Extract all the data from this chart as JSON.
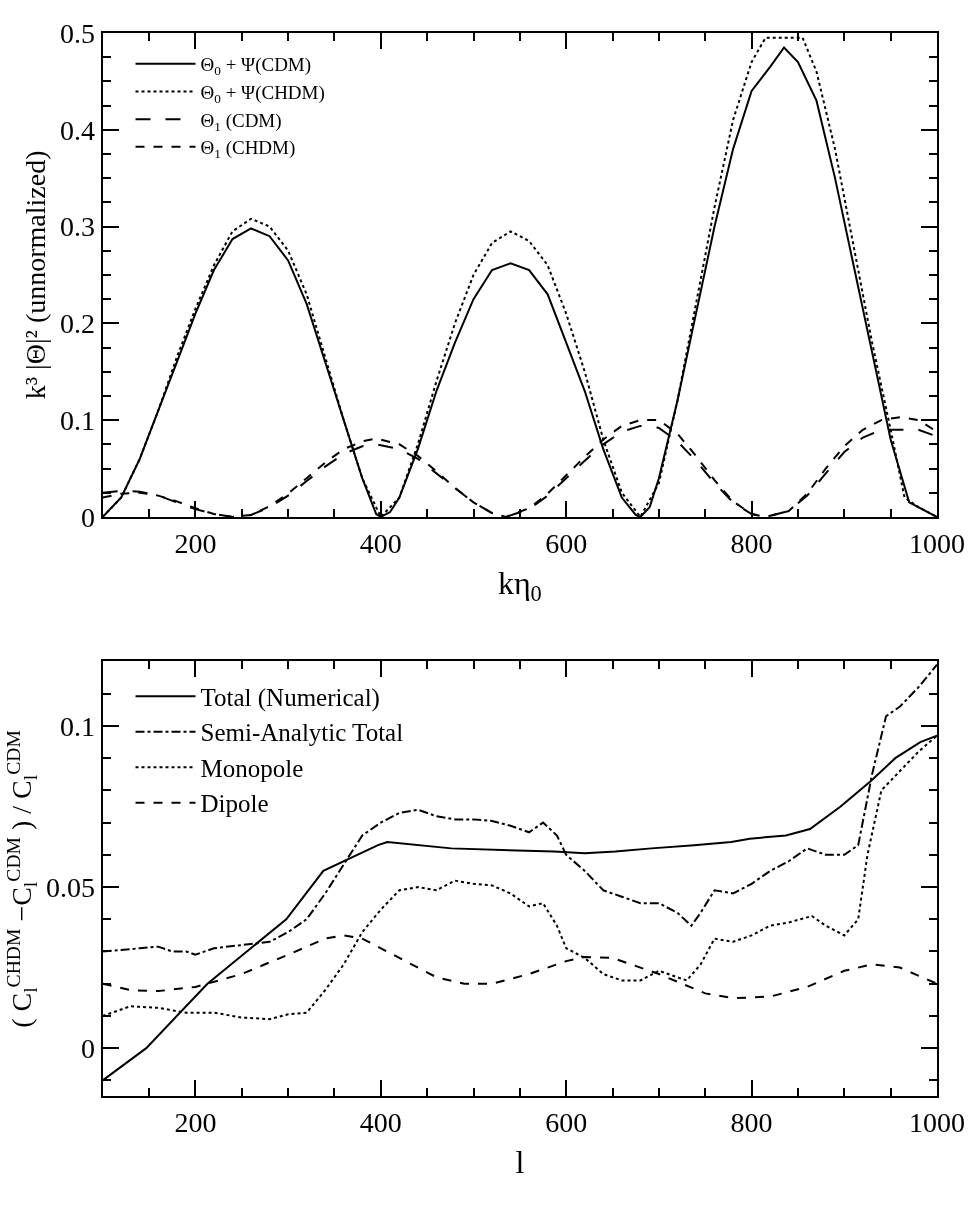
{
  "chart_data": [
    {
      "type": "line",
      "xlabel": "kη$_{0}$",
      "ylabel": "k³ |Θ|² (unnormalized)",
      "xlim": [
        100,
        1000
      ],
      "ylim": [
        0,
        0.5
      ],
      "xticks": [
        {
          "value": 150,
          "label": null
        },
        200,
        {
          "value": 250,
          "label": null
        },
        {
          "value": 300,
          "label": null
        },
        {
          "value": 350,
          "label": null
        },
        400,
        {
          "value": 450,
          "label": null
        },
        {
          "value": 500,
          "label": null
        },
        {
          "value": 550,
          "label": null
        },
        600,
        {
          "value": 650,
          "label": null
        },
        {
          "value": 700,
          "label": null
        },
        {
          "value": 750,
          "label": null
        },
        800,
        {
          "value": 850,
          "label": null
        },
        {
          "value": 900,
          "label": null
        },
        {
          "value": 950,
          "label": null
        },
        1000
      ],
      "yticks": [
        0,
        {
          "value": 0.025,
          "label": null
        },
        {
          "value": 0.05,
          "label": null
        },
        {
          "value": 0.075,
          "label": null
        },
        0.1,
        {
          "value": 0.125,
          "label": null
        },
        {
          "value": 0.15,
          "label": null
        },
        {
          "value": 0.175,
          "label": null
        },
        0.2,
        {
          "value": 0.225,
          "label": null
        },
        {
          "value": 0.25,
          "label": null
        },
        {
          "value": 0.275,
          "label": null
        },
        0.3,
        {
          "value": 0.325,
          "label": null
        },
        {
          "value": 0.35,
          "label": null
        },
        {
          "value": 0.375,
          "label": null
        },
        0.4,
        {
          "value": 0.425,
          "label": null
        },
        {
          "value": 0.45,
          "label": null
        },
        {
          "value": 0.475,
          "label": null
        },
        0.5
      ],
      "legend": "top left",
      "marker": "none",
      "series": [
        {
          "name": "Θ$_{0}$ + Ψ(CDM)",
          "color": "#000000",
          "line_style": "solid",
          "x": [
            100,
            120,
            140,
            160,
            180,
            200,
            220,
            240,
            260,
            280,
            300,
            320,
            340,
            360,
            380,
            395,
            400,
            410,
            420,
            440,
            460,
            480,
            500,
            520,
            540,
            560,
            580,
            600,
            620,
            640,
            660,
            675,
            680,
            690,
            700,
            720,
            740,
            760,
            780,
            800,
            820,
            835,
            850,
            870,
            890,
            910,
            930,
            950,
            970,
            990,
            1000
          ],
          "values": [
            0,
            0.02,
            0.06,
            0.11,
            0.16,
            0.21,
            0.255,
            0.287,
            0.298,
            0.29,
            0.265,
            0.22,
            0.16,
            0.1,
            0.04,
            0.003,
            0,
            0.005,
            0.02,
            0.07,
            0.13,
            0.18,
            0.225,
            0.255,
            0.262,
            0.255,
            0.23,
            0.18,
            0.13,
            0.07,
            0.02,
            0.002,
            0,
            0.01,
            0.04,
            0.12,
            0.21,
            0.3,
            0.38,
            0.44,
            0.465,
            0.485,
            0.47,
            0.43,
            0.35,
            0.26,
            0.17,
            0.08,
            0.015,
            0.005,
            0
          ]
        },
        {
          "name": "Θ$_{0}$ + Ψ(CHDM)",
          "color": "#000000",
          "line_style": "dotted",
          "x": [
            100,
            120,
            140,
            160,
            180,
            200,
            220,
            240,
            260,
            280,
            300,
            320,
            340,
            360,
            380,
            400,
            420,
            440,
            460,
            480,
            500,
            520,
            540,
            560,
            580,
            600,
            620,
            640,
            660,
            680,
            700,
            720,
            740,
            760,
            780,
            800,
            815,
            855,
            870,
            890,
            910,
            930,
            950,
            965,
            980,
            1000
          ],
          "values": [
            0,
            0.02,
            0.06,
            0.11,
            0.165,
            0.215,
            0.26,
            0.295,
            0.308,
            0.3,
            0.275,
            0.23,
            0.165,
            0.1,
            0.04,
            0,
            0.02,
            0.075,
            0.14,
            0.2,
            0.25,
            0.283,
            0.295,
            0.285,
            0.26,
            0.21,
            0.15,
            0.08,
            0.025,
            0,
            0.035,
            0.12,
            0.22,
            0.32,
            0.41,
            0.47,
            0.495,
            0.495,
            0.46,
            0.38,
            0.28,
            0.18,
            0.09,
            0.02,
            0.01,
            0
          ]
        },
        {
          "name": "Θ$_{1}$ (CDM)",
          "color": "#000000",
          "line_style": "longdash",
          "x": [
            100,
            120,
            140,
            160,
            180,
            200,
            220,
            240,
            260,
            280,
            300,
            320,
            340,
            360,
            380,
            395,
            420,
            440,
            460,
            480,
            500,
            520,
            535,
            560,
            580,
            600,
            620,
            640,
            660,
            680,
            700,
            720,
            740,
            760,
            780,
            800,
            815,
            840,
            860,
            880,
            900,
            920,
            940,
            960,
            980,
            1000
          ],
          "values": [
            0.025,
            0.027,
            0.026,
            0.022,
            0.015,
            0.008,
            0.003,
            0,
            0.002,
            0.01,
            0.022,
            0.037,
            0.052,
            0.065,
            0.073,
            0.075,
            0.07,
            0.06,
            0.045,
            0.03,
            0.015,
            0.004,
            0,
            0.008,
            0.022,
            0.04,
            0.058,
            0.075,
            0.088,
            0.094,
            0.092,
            0.078,
            0.058,
            0.035,
            0.015,
            0.003,
            0,
            0.006,
            0.022,
            0.045,
            0.067,
            0.082,
            0.09,
            0.09,
            0.09,
            0.083
          ]
        },
        {
          "name": "Θ$_{1}$ (CHDM)",
          "color": "#000000",
          "line_style": "dashed",
          "x": [
            100,
            120,
            140,
            160,
            180,
            200,
            220,
            240,
            260,
            280,
            300,
            320,
            340,
            360,
            380,
            395,
            420,
            440,
            460,
            480,
            500,
            520,
            535,
            560,
            580,
            600,
            620,
            640,
            660,
            680,
            700,
            720,
            740,
            760,
            780,
            800,
            815,
            840,
            860,
            880,
            900,
            920,
            940,
            960,
            980,
            1000
          ],
          "values": [
            0.02,
            0.024,
            0.025,
            0.022,
            0.016,
            0.009,
            0.003,
            0,
            0.002,
            0.011,
            0.024,
            0.04,
            0.056,
            0.07,
            0.078,
            0.081,
            0.075,
            0.063,
            0.047,
            0.03,
            0.015,
            0.004,
            0,
            0.009,
            0.024,
            0.043,
            0.062,
            0.08,
            0.094,
            0.1,
            0.1,
            0.086,
            0.063,
            0.038,
            0.016,
            0.003,
            0,
            0.006,
            0.024,
            0.05,
            0.073,
            0.09,
            0.1,
            0.103,
            0.1,
            0.088
          ]
        }
      ]
    },
    {
      "type": "line",
      "xlabel": "l",
      "ylabel": "( C$_{l}$$^{CHDM}$ −C$_{l}$$^{CDM}$ ) / C$_{l}$$^{CDM}$",
      "xlim": [
        100,
        1000
      ],
      "ylim": [
        -0.015,
        0.12
      ],
      "xticks": [
        {
          "value": 150,
          "label": null
        },
        200,
        {
          "value": 250,
          "label": null
        },
        {
          "value": 300,
          "label": null
        },
        {
          "value": 350,
          "label": null
        },
        400,
        {
          "value": 450,
          "label": null
        },
        {
          "value": 500,
          "label": null
        },
        {
          "value": 550,
          "label": null
        },
        600,
        {
          "value": 650,
          "label": null
        },
        {
          "value": 700,
          "label": null
        },
        {
          "value": 750,
          "label": null
        },
        800,
        {
          "value": 850,
          "label": null
        },
        {
          "value": 900,
          "label": null
        },
        {
          "value": 950,
          "label": null
        },
        1000
      ],
      "yticks": [
        {
          "value": -0.01,
          "label": null
        },
        0,
        {
          "value": 0.01,
          "label": null
        },
        {
          "value": 0.02,
          "label": null
        },
        {
          "value": 0.03,
          "label": null
        },
        {
          "value": 0.04,
          "label": null
        },
        0.05,
        {
          "value": 0.06,
          "label": null
        },
        {
          "value": 0.07,
          "label": null
        },
        {
          "value": 0.08,
          "label": null
        },
        {
          "value": 0.09,
          "label": null
        },
        0.1,
        {
          "value": 0.11,
          "label": null
        }
      ],
      "legend": "top left",
      "marker": "none",
      "series": [
        {
          "name": "Total (Numerical)",
          "color": "#000000",
          "line_style": "solid",
          "x": [
            100,
            147,
            213,
            298,
            338,
            397,
            407,
            476,
            587,
            620,
            653,
            692,
            738,
            778,
            798,
            837,
            863,
            896,
            929,
            955,
            982,
            1000
          ],
          "values": [
            -0.01,
            0,
            0.02,
            0.04,
            0.055,
            0.063,
            0.064,
            0.062,
            0.061,
            0.0605,
            0.061,
            0.062,
            0.063,
            0.064,
            0.065,
            0.066,
            0.068,
            0.075,
            0.083,
            0.09,
            0.095,
            0.097
          ]
        },
        {
          "name": "Semi-Analytic Total",
          "color": "#000000",
          "line_style": "dashdot",
          "x": [
            100,
            140,
            160,
            175,
            190,
            200,
            220,
            250,
            280,
            300,
            320,
            340,
            360,
            380,
            400,
            420,
            440,
            460,
            480,
            500,
            520,
            540,
            560,
            575,
            590,
            600,
            620,
            640,
            660,
            680,
            700,
            720,
            735,
            745,
            760,
            780,
            800,
            820,
            840,
            860,
            880,
            900,
            915,
            930,
            945,
            960,
            980,
            1000
          ],
          "values": [
            0.03,
            0.031,
            0.0315,
            0.03,
            0.03,
            0.029,
            0.031,
            0.032,
            0.033,
            0.036,
            0.04,
            0.048,
            0.057,
            0.066,
            0.07,
            0.073,
            0.074,
            0.072,
            0.071,
            0.071,
            0.0705,
            0.069,
            0.067,
            0.07,
            0.066,
            0.06,
            0.055,
            0.049,
            0.047,
            0.045,
            0.045,
            0.042,
            0.038,
            0.042,
            0.049,
            0.048,
            0.051,
            0.055,
            0.058,
            0.062,
            0.06,
            0.06,
            0.063,
            0.085,
            0.103,
            0.106,
            0.112,
            0.119
          ]
        },
        {
          "name": "Monopole",
          "color": "#000000",
          "line_style": "dotted",
          "x": [
            100,
            130,
            160,
            190,
            220,
            250,
            280,
            300,
            320,
            340,
            360,
            380,
            400,
            420,
            440,
            460,
            480,
            500,
            520,
            540,
            560,
            575,
            590,
            600,
            620,
            640,
            660,
            680,
            700,
            720,
            730,
            745,
            760,
            780,
            800,
            820,
            840,
            865,
            880,
            900,
            915,
            925,
            940,
            960,
            980,
            1000
          ],
          "values": [
            0.01,
            0.013,
            0.0125,
            0.011,
            0.011,
            0.0095,
            0.009,
            0.0105,
            0.011,
            0.018,
            0.026,
            0.036,
            0.043,
            0.049,
            0.05,
            0.049,
            0.052,
            0.051,
            0.0505,
            0.048,
            0.044,
            0.045,
            0.038,
            0.031,
            0.028,
            0.023,
            0.021,
            0.021,
            0.024,
            0.022,
            0.021,
            0.026,
            0.034,
            0.033,
            0.035,
            0.038,
            0.039,
            0.041,
            0.038,
            0.035,
            0.04,
            0.06,
            0.08,
            0.086,
            0.092,
            0.097
          ]
        },
        {
          "name": "Dipole",
          "color": "#000000",
          "line_style": "dashed",
          "x": [
            100,
            130,
            160,
            200,
            250,
            300,
            340,
            360,
            380,
            420,
            460,
            490,
            520,
            560,
            600,
            620,
            650,
            700,
            750,
            780,
            820,
            860,
            900,
            930,
            960,
            1000
          ],
          "values": [
            0.02,
            0.018,
            0.0177,
            0.019,
            0.023,
            0.029,
            0.034,
            0.035,
            0.034,
            0.028,
            0.022,
            0.02,
            0.02,
            0.023,
            0.027,
            0.0283,
            0.028,
            0.023,
            0.017,
            0.0155,
            0.016,
            0.019,
            0.024,
            0.026,
            0.025,
            0.02
          ]
        }
      ]
    }
  ]
}
